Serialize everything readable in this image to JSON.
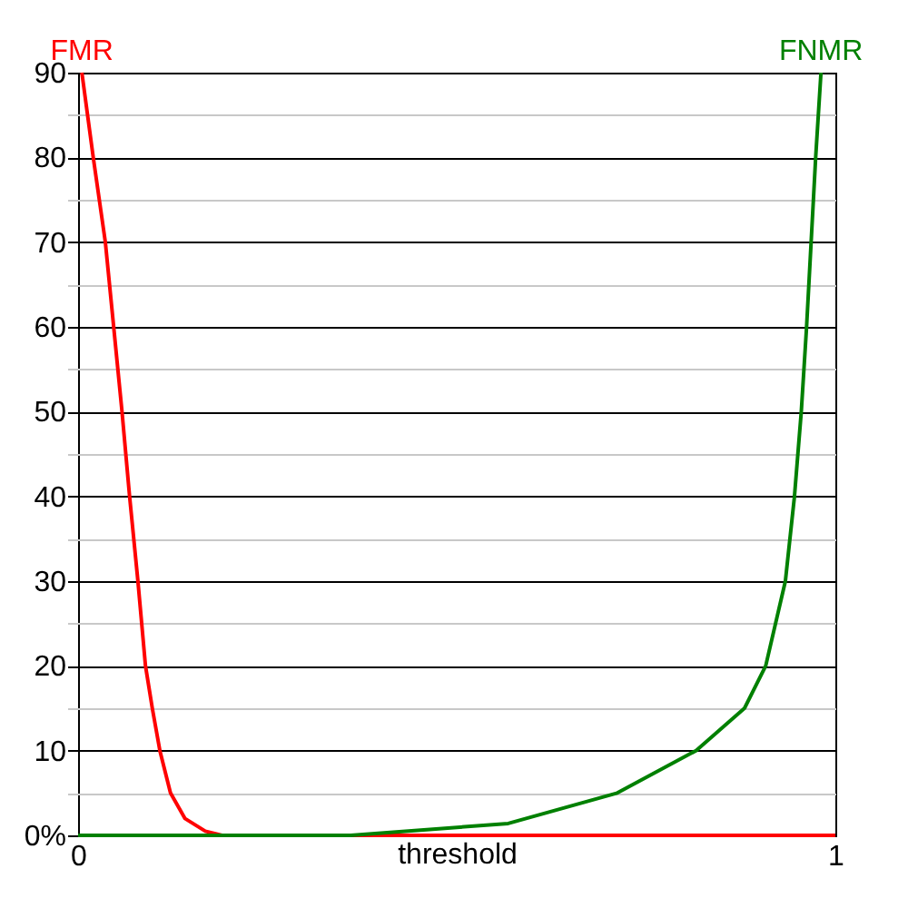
{
  "chart_data": {
    "type": "line",
    "xlabel": "threshold",
    "xlim": [
      0,
      1
    ],
    "xticks": [
      0,
      1
    ],
    "ylim": [
      0,
      90
    ],
    "yticks": [
      {
        "value": 0,
        "label": "0%"
      },
      {
        "value": 5,
        "label": null
      },
      10,
      {
        "value": 15,
        "label": null
      },
      20,
      {
        "value": 25,
        "label": null
      },
      30,
      {
        "value": 35,
        "label": null
      },
      40,
      {
        "value": 45,
        "label": null
      },
      50,
      {
        "value": 55,
        "label": null
      },
      60,
      {
        "value": 65,
        "label": null
      },
      70,
      {
        "value": 75,
        "label": null
      },
      80,
      {
        "value": 85,
        "label": null
      },
      90
    ],
    "grid": "y",
    "marker": "none",
    "line_style": "solid",
    "series": [
      {
        "name": "FMR",
        "color": "#ff0000",
        "x": [
          0.005,
          0.02,
          0.036,
          0.047,
          0.058,
          0.068,
          0.079,
          0.089,
          0.098,
          0.108,
          0.122,
          0.141,
          0.168,
          0.19,
          0.5,
          1
        ],
        "values": [
          90,
          80,
          70,
          60,
          50,
          40,
          30,
          20,
          15,
          10,
          5,
          2,
          0.5,
          0,
          0,
          0
        ]
      },
      {
        "name": "FNMR",
        "color": "#008000",
        "x": [
          0,
          0.36,
          0.568,
          0.712,
          0.816,
          0.88,
          0.908,
          0.934,
          0.946,
          0.955,
          0.962,
          0.968,
          0.974,
          0.981
        ],
        "values": [
          0,
          0,
          1.4,
          5,
          10,
          15,
          20,
          30,
          40,
          50,
          60,
          70,
          80,
          90
        ]
      }
    ]
  }
}
